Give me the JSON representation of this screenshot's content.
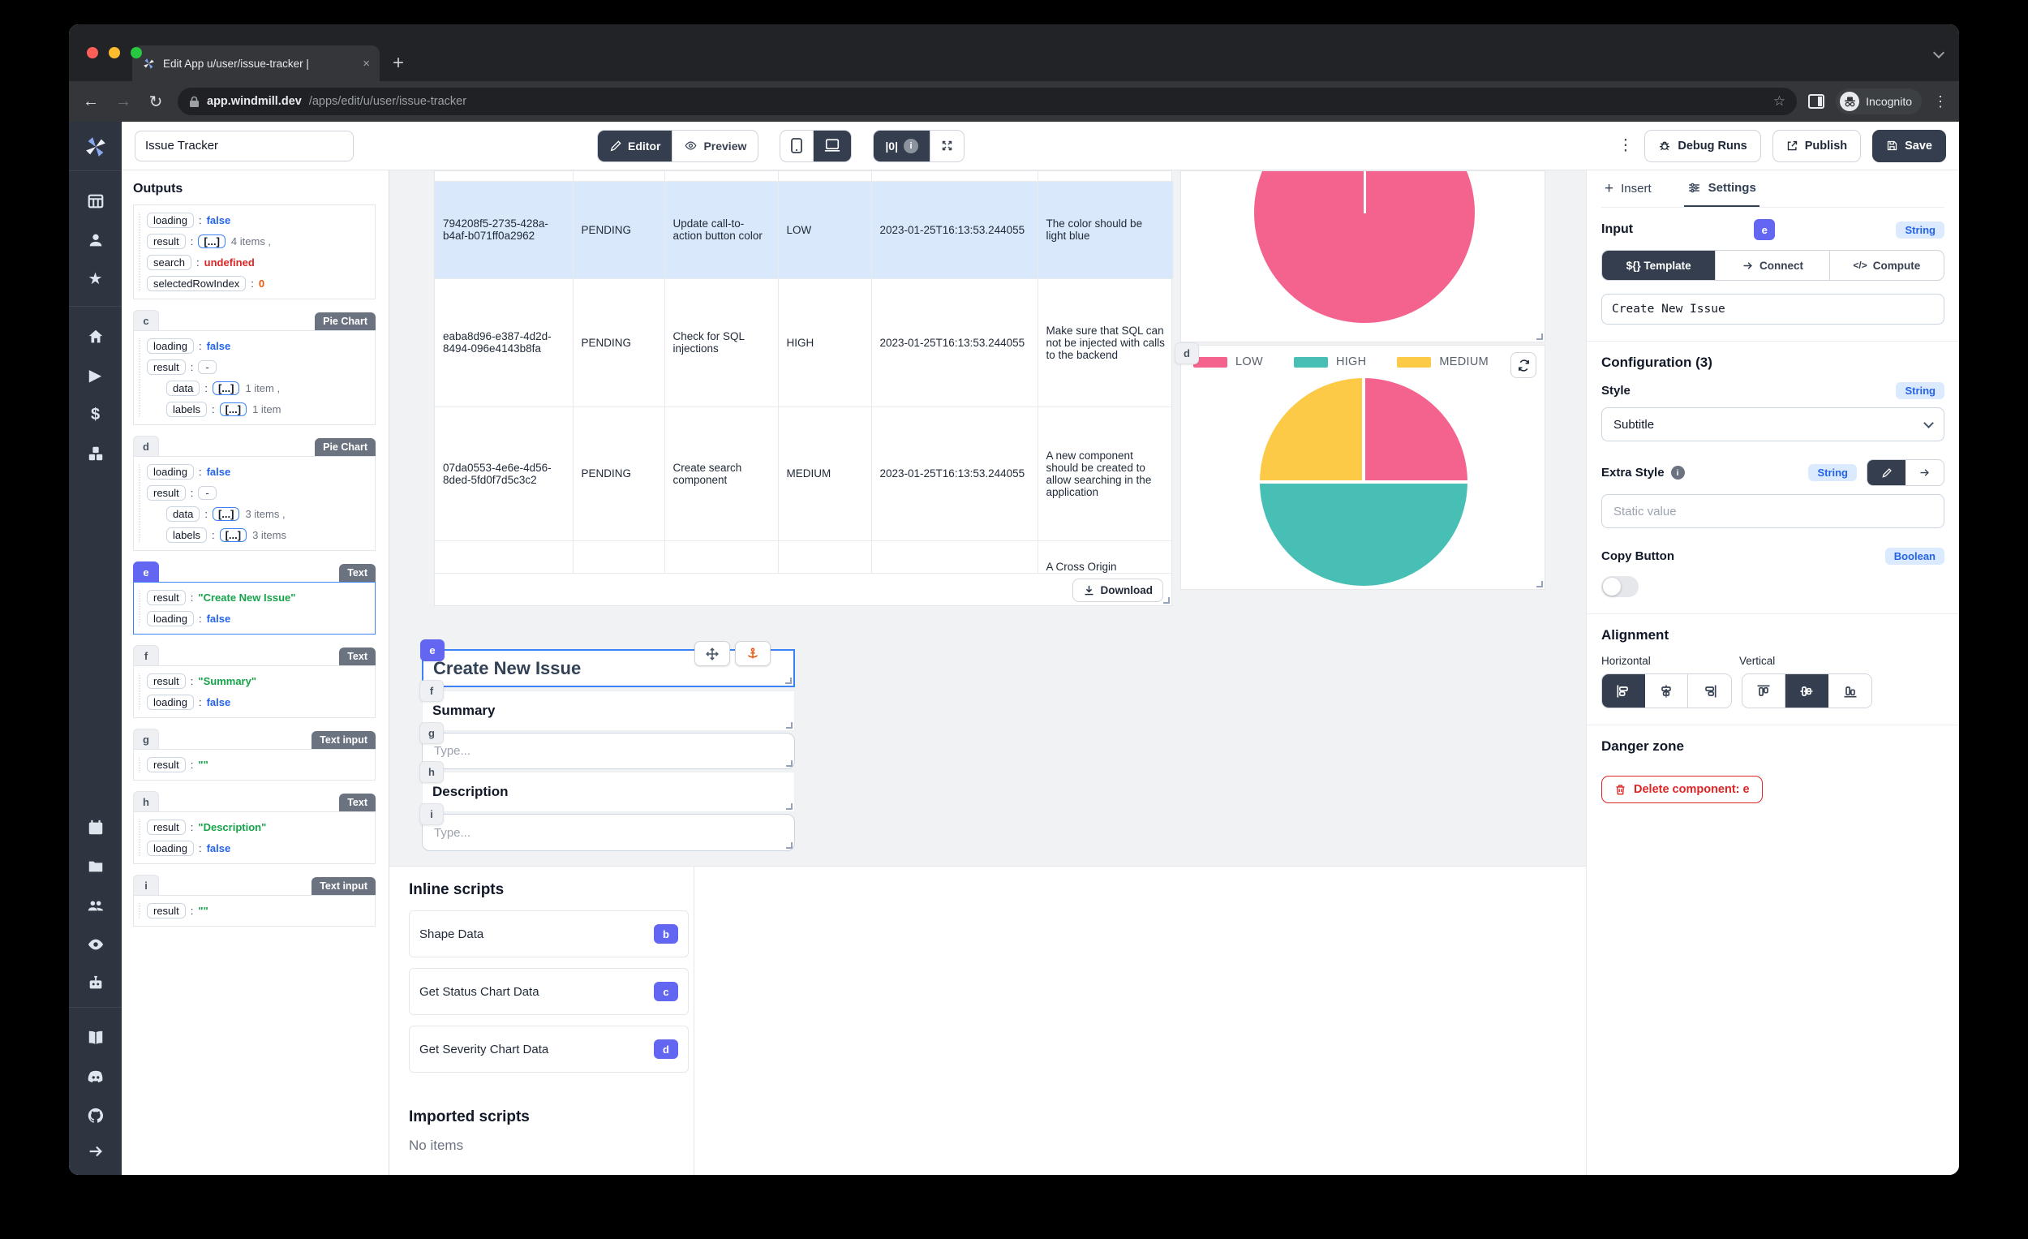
{
  "browser": {
    "tab_title": "Edit App u/user/issue-tracker |",
    "url_host": "app.windmill.dev",
    "url_path": "/apps/edit/u/user/issue-tracker",
    "incognito_label": "Incognito"
  },
  "toolbar": {
    "app_name": "Issue Tracker",
    "editor_label": "Editor",
    "preview_label": "Preview",
    "counter_label": "|0|",
    "debug_label": "Debug Runs",
    "publish_label": "Publish",
    "save_label": "Save"
  },
  "sidebar_icons": [
    "windmill-logo",
    "apps-grid",
    "user",
    "star",
    "home",
    "play",
    "dollar",
    "cubes",
    "calendar",
    "folder",
    "users",
    "eye",
    "robot",
    "book",
    "discord",
    "github",
    "arrow-right"
  ],
  "outputs": {
    "title": "Outputs",
    "sections": [
      {
        "letter": "",
        "type": "",
        "header": false,
        "selected": false,
        "rows": [
          {
            "key": "loading",
            "val": "false",
            "cls": "bool"
          },
          {
            "key": "result",
            "val": "4 items ,",
            "cls": "arr"
          },
          {
            "key": "search",
            "val": "undefined",
            "cls": "undef"
          },
          {
            "key": "selectedRowIndex",
            "val": "0",
            "cls": "num"
          }
        ]
      },
      {
        "letter": "c",
        "type": "Pie Chart",
        "header": true,
        "selected": false,
        "rows": [
          {
            "key": "loading",
            "val": "false",
            "cls": "bool"
          },
          {
            "key": "result",
            "val": "-",
            "cls": "dash"
          },
          {
            "key": "data",
            "val": "1 item ,",
            "cls": "arr",
            "indent": true
          },
          {
            "key": "labels",
            "val": "1 item",
            "cls": "arr",
            "indent": true
          }
        ]
      },
      {
        "letter": "d",
        "type": "Pie Chart",
        "header": true,
        "selected": false,
        "rows": [
          {
            "key": "loading",
            "val": "false",
            "cls": "bool"
          },
          {
            "key": "result",
            "val": "-",
            "cls": "dash"
          },
          {
            "key": "data",
            "val": "3 items ,",
            "cls": "arr",
            "indent": true
          },
          {
            "key": "labels",
            "val": "3 items",
            "cls": "arr",
            "indent": true
          }
        ]
      },
      {
        "letter": "e",
        "type": "Text",
        "header": true,
        "selected": true,
        "rows": [
          {
            "key": "result",
            "val": "\"Create New Issue\"",
            "cls": "str"
          },
          {
            "key": "loading",
            "val": "false",
            "cls": "bool"
          }
        ]
      },
      {
        "letter": "f",
        "type": "Text",
        "header": true,
        "selected": false,
        "rows": [
          {
            "key": "result",
            "val": "\"Summary\"",
            "cls": "str"
          },
          {
            "key": "loading",
            "val": "false",
            "cls": "bool"
          }
        ]
      },
      {
        "letter": "g",
        "type": "Text input",
        "header": true,
        "selected": false,
        "rows": [
          {
            "key": "result",
            "val": "\"\"",
            "cls": "str"
          }
        ]
      },
      {
        "letter": "h",
        "type": "Text",
        "header": true,
        "selected": false,
        "rows": [
          {
            "key": "result",
            "val": "\"Description\"",
            "cls": "str"
          },
          {
            "key": "loading",
            "val": "false",
            "cls": "bool"
          }
        ]
      },
      {
        "letter": "i",
        "type": "Text input",
        "header": true,
        "selected": false,
        "rows": [
          {
            "key": "result",
            "val": "\"\"",
            "cls": "str"
          }
        ]
      }
    ]
  },
  "table": {
    "rows": [
      {
        "id": "794208f5-2735-428a-b4af-b071ff0a2962",
        "status": "PENDING",
        "title": "Update call-to-action button color",
        "severity": "LOW",
        "date": "2023-01-25T16:13:53.244055",
        "description": "The color should be light blue",
        "selected": true
      },
      {
        "id": "eaba8d96-e387-4d2d-8494-096e4143b8fa",
        "status": "PENDING",
        "title": "Check for SQL injections",
        "severity": "HIGH",
        "date": "2023-01-25T16:13:53.244055",
        "description": "Make sure that SQL can not be injected with calls to the backend",
        "selected": false
      },
      {
        "id": "07da0553-4e6e-4d56-8ded-5fd0f7d5c3c2",
        "status": "PENDING",
        "title": "Create search component",
        "severity": "MEDIUM",
        "date": "2023-01-25T16:13:53.244055",
        "description": "A new component should be created to allow searching in the application",
        "selected": false
      }
    ],
    "partial_row_text": "A Cross Origin",
    "download_label": "Download"
  },
  "chart_data": [
    {
      "type": "pie",
      "component": "c",
      "labels": [],
      "values": [
        1
      ],
      "colors": [
        "#F4638D"
      ],
      "legend_position": "cut-off-above"
    },
    {
      "type": "pie",
      "component": "d",
      "labels": [
        "LOW",
        "HIGH",
        "MEDIUM"
      ],
      "values": [
        25,
        50,
        25
      ],
      "colors": [
        "#F4638D",
        "#47BFB5",
        "#FCCA46"
      ],
      "legend_position": "top"
    }
  ],
  "canvas_form": {
    "e_text": "Create New Issue",
    "f_text": "Summary",
    "g_placeholder": "Type...",
    "h_text": "Description",
    "i_placeholder": "Type..."
  },
  "scripts": {
    "inline_title": "Inline scripts",
    "items": [
      {
        "name": "Shape Data",
        "badge": "b"
      },
      {
        "name": "Get Status Chart Data",
        "badge": "c"
      },
      {
        "name": "Get Severity Chart Data",
        "badge": "d"
      }
    ],
    "imported_title": "Imported scripts",
    "empty_label": "No items"
  },
  "settings": {
    "insert_label": "Insert",
    "settings_label": "Settings",
    "input_label": "Input",
    "component_letter": "e",
    "input_type": "String",
    "template_label": "${} Template",
    "connect_label": "Connect",
    "compute_label": "Compute",
    "compute_icon": "</>",
    "template_value": "Create New Issue",
    "config_title": "Configuration (3)",
    "style_label": "Style",
    "style_type": "String",
    "style_value": "Subtitle",
    "extra_label": "Extra Style",
    "extra_type": "String",
    "extra_placeholder": "Static value",
    "copy_label": "Copy Button",
    "copy_type": "Boolean",
    "align_title": "Alignment",
    "horizontal_label": "Horizontal",
    "vertical_label": "Vertical",
    "danger_title": "Danger zone",
    "delete_label": "Delete component: e"
  },
  "colors": {
    "accent_indigo": "#6366f1",
    "selected_row": "#d9e8fb",
    "pie_pink": "#F4638D",
    "pie_teal": "#47BFB5",
    "pie_yellow": "#FCCA46",
    "danger_red": "#dc2626",
    "dark_button": "#343e4e"
  }
}
